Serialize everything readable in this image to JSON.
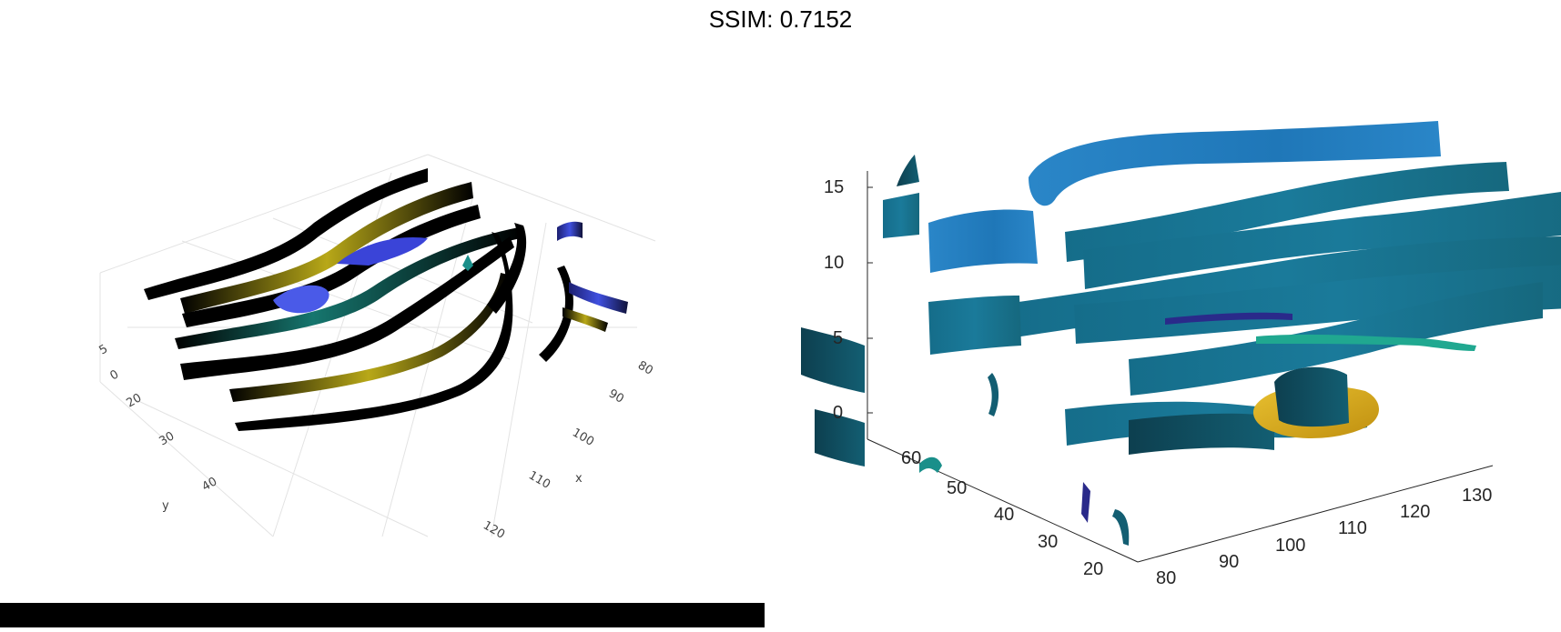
{
  "title": "SSIM: 0.7152",
  "chart_data": [
    {
      "type": "streamribbon-3d",
      "renderer": "plotly-style",
      "colors": {
        "ribbon_dark": "#000000",
        "ribbon_yellow": "#d4c21a",
        "ribbon_teal": "#1a8f8a",
        "ribbon_blue": "#3c46d8"
      },
      "axes": {
        "x": {
          "label": "x",
          "ticks": [
            "80",
            "90",
            "100",
            "110",
            "120"
          ]
        },
        "y": {
          "label": "y",
          "ticks": [
            "20",
            "30",
            "40"
          ]
        },
        "z": {
          "ticks": [
            "0",
            "5"
          ]
        }
      },
      "grid": true
    },
    {
      "type": "streamribbon-3d",
      "renderer": "matlab-style",
      "colors": {
        "ribbon": "#1a7a9a",
        "ribbon_light": "#2a86c8",
        "ribbon_dark": "#0f4f60",
        "isosurface": "#d8b020",
        "accent": "#20a890",
        "violet": "#2a2a8a"
      },
      "axes": {
        "x": {
          "ticks": [
            "80",
            "90",
            "100",
            "110",
            "120",
            "130"
          ]
        },
        "y": {
          "ticks": [
            "20",
            "30",
            "40",
            "50",
            "60"
          ]
        },
        "z": {
          "ticks": [
            "0",
            "5",
            "10",
            "15"
          ]
        }
      },
      "grid": false
    }
  ]
}
